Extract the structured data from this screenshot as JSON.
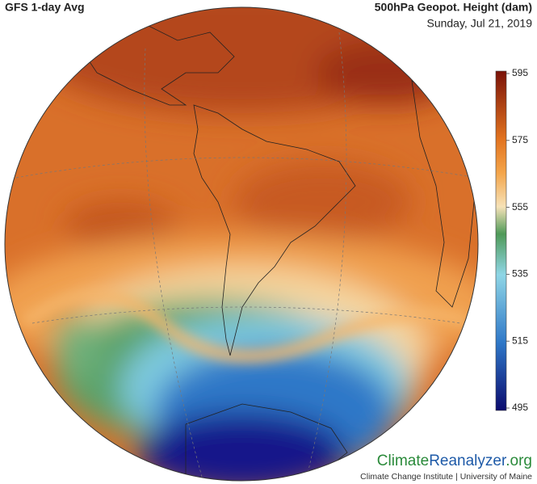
{
  "header": {
    "title": "GFS 1-day Avg",
    "variable": "500hPa Geopot. Height (dam)",
    "date": "Sunday, Jul 21, 2019"
  },
  "colorbar": {
    "ticks": [
      595,
      575,
      555,
      535,
      515,
      495
    ]
  },
  "footer": {
    "brand_part1": "Climate",
    "brand_part2": "Reanalyzer",
    "brand_part3": ".org",
    "subtitle": "Climate Change Institute | University of Maine"
  }
}
